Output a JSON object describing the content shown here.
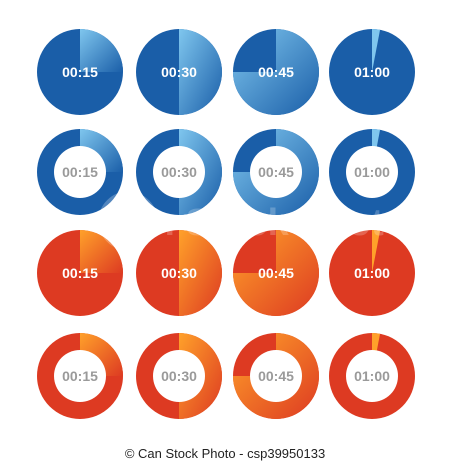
{
  "colors": {
    "blue": "#1a5ea8",
    "blue_dark": "#0e4a8f",
    "blue_light": "#7fc6ee",
    "red": "#dd3a22",
    "red_dark": "#c42a1a",
    "orange": "#ffa12a",
    "label_on_fill": "#ffffff",
    "label_on_ring": "#9a9a9a",
    "ring_inner": "#ffffff"
  },
  "rows": [
    {
      "color": "blue",
      "style": "solid"
    },
    {
      "color": "blue",
      "style": "ring"
    },
    {
      "color": "red",
      "style": "solid"
    },
    {
      "color": "red",
      "style": "ring"
    }
  ],
  "timers": [
    {
      "label": "00:15",
      "fraction": 0.25
    },
    {
      "label": "00:30",
      "fraction": 0.5
    },
    {
      "label": "00:45",
      "fraction": 0.75
    },
    {
      "label": "01:00",
      "fraction": 1.0
    }
  ],
  "watermark": {
    "text": "Can Stock Photo",
    "icon": "camera-icon"
  },
  "footer": {
    "text": "© Can Stock Photo - csp39950133"
  }
}
